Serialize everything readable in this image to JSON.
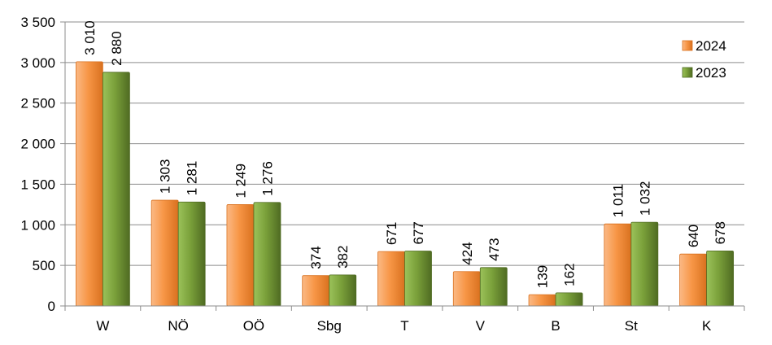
{
  "chart_data": {
    "type": "bar",
    "title": "",
    "xlabel": "",
    "ylabel": "",
    "categories": [
      "W",
      "NÖ",
      "OÖ",
      "Sbg",
      "T",
      "V",
      "B",
      "St",
      "K"
    ],
    "series": [
      {
        "name": "2024",
        "values": [
          3010,
          1303,
          1249,
          374,
          671,
          424,
          139,
          1011,
          640
        ],
        "labels": [
          "3 010",
          "1 303",
          "1 249",
          "374",
          "671",
          "424",
          "139",
          "1 011",
          "640"
        ],
        "color": "#f79646",
        "color_dark": "#d9711f",
        "color_light": "#fbb985"
      },
      {
        "name": "2023",
        "values": [
          2880,
          1281,
          1276,
          382,
          677,
          473,
          162,
          1032,
          678
        ],
        "labels": [
          "2 880",
          "1 281",
          "1 276",
          "382",
          "677",
          "473",
          "162",
          "1 032",
          "678"
        ],
        "color": "#7aa03a",
        "color_dark": "#4f6b22",
        "color_light": "#9bc25a"
      }
    ],
    "ylim": [
      0,
      3500
    ],
    "yticks": [
      0,
      500,
      1000,
      1500,
      2000,
      2500,
      3000,
      3500
    ],
    "ytick_labels": [
      "0",
      "500",
      "1 000",
      "1 500",
      "2 000",
      "2 500",
      "3 000",
      "3 500"
    ],
    "grid": true,
    "legend_position": "top-right"
  }
}
